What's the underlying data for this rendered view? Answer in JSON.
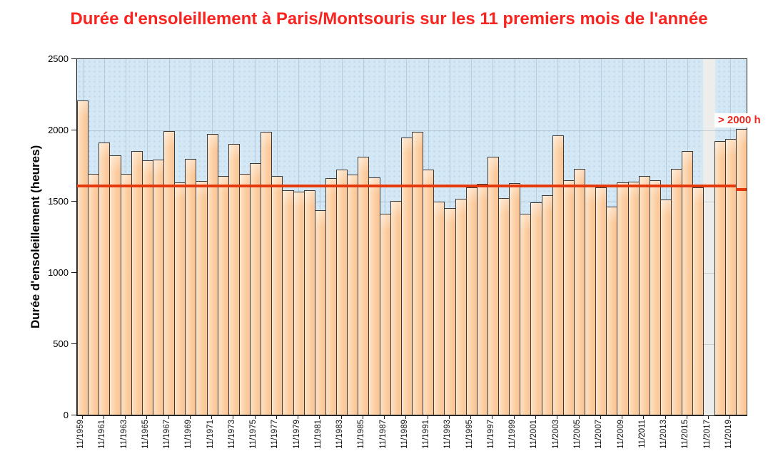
{
  "title": "Durée d'ensoleillement à Paris/Montsouris sur les 11 premiers mois de l'année",
  "annotation": {
    "label": "> 2000 h"
  },
  "chart_data": {
    "type": "bar",
    "title": "Durée d'ensoleillement à Paris/Montsouris sur les 11 premiers mois de l'année",
    "xlabel": "",
    "ylabel": "Durée d'ensoleillement (heures)",
    "ylim": [
      0,
      2500
    ],
    "yticks": [
      0,
      500,
      1000,
      1500,
      2000,
      2500
    ],
    "x_tick_labels": [
      "11/1959",
      "11/1961",
      "11/1963",
      "11/1965",
      "11/1967",
      "11/1969",
      "11/1971",
      "11/1973",
      "11/1975",
      "11/1977",
      "11/1979",
      "11/1981",
      "11/1983",
      "11/1985",
      "11/1987",
      "11/1989",
      "11/1991",
      "11/1993",
      "11/1995",
      "11/1997",
      "11/1999",
      "11/2001",
      "11/2003",
      "11/2005",
      "11/2007",
      "11/2009",
      "11/2011",
      "11/2013",
      "11/2015",
      "11/2017",
      "11/2019"
    ],
    "years": [
      1959,
      1960,
      1961,
      1962,
      1963,
      1964,
      1965,
      1966,
      1967,
      1968,
      1969,
      1970,
      1971,
      1972,
      1973,
      1974,
      1975,
      1976,
      1977,
      1978,
      1979,
      1980,
      1981,
      1982,
      1983,
      1984,
      1985,
      1986,
      1987,
      1988,
      1989,
      1990,
      1991,
      1992,
      1993,
      1994,
      1995,
      1996,
      1997,
      1998,
      1999,
      2000,
      2001,
      2002,
      2003,
      2004,
      2005,
      2006,
      2007,
      2008,
      2009,
      2010,
      2011,
      2012,
      2013,
      2014,
      2015,
      2016,
      2017,
      2018,
      2019,
      2020
    ],
    "values": [
      2210,
      1695,
      1915,
      1825,
      1695,
      1855,
      1790,
      1795,
      1995,
      1635,
      1800,
      1645,
      1975,
      1680,
      1905,
      1695,
      1770,
      1990,
      1680,
      1580,
      1570,
      1580,
      1440,
      1665,
      1725,
      1690,
      1815,
      1670,
      1415,
      1505,
      1950,
      1990,
      1725,
      1500,
      1455,
      1520,
      1600,
      1625,
      1815,
      1525,
      1630,
      1415,
      1495,
      1545,
      1965,
      1650,
      1730,
      1605,
      1600,
      1465,
      1635,
      1640,
      1680,
      1650,
      1515,
      1730,
      1855,
      1600,
      null,
      1925,
      1940,
      2010
    ],
    "missing_years": [
      2017
    ],
    "reference_lines": [
      {
        "value": 1610,
        "from_year": 1959,
        "to_year": 2019,
        "color": "#e6380b"
      },
      {
        "value": 1585,
        "from_year": 2020,
        "to_year": 2020,
        "color": "#e6380b"
      }
    ],
    "annotations": [
      {
        "text": "> 2000 h",
        "near_year": 2020,
        "y": 2075
      }
    ],
    "grid": true,
    "legend": false,
    "colors": {
      "bar_fill": "#fbcda0",
      "bar_border": "#3a3a3a",
      "plot_background": "#d4e7f5",
      "missing_band": "#edeeec",
      "title_color": "#f92420",
      "reference_line": "#e6380b"
    }
  }
}
